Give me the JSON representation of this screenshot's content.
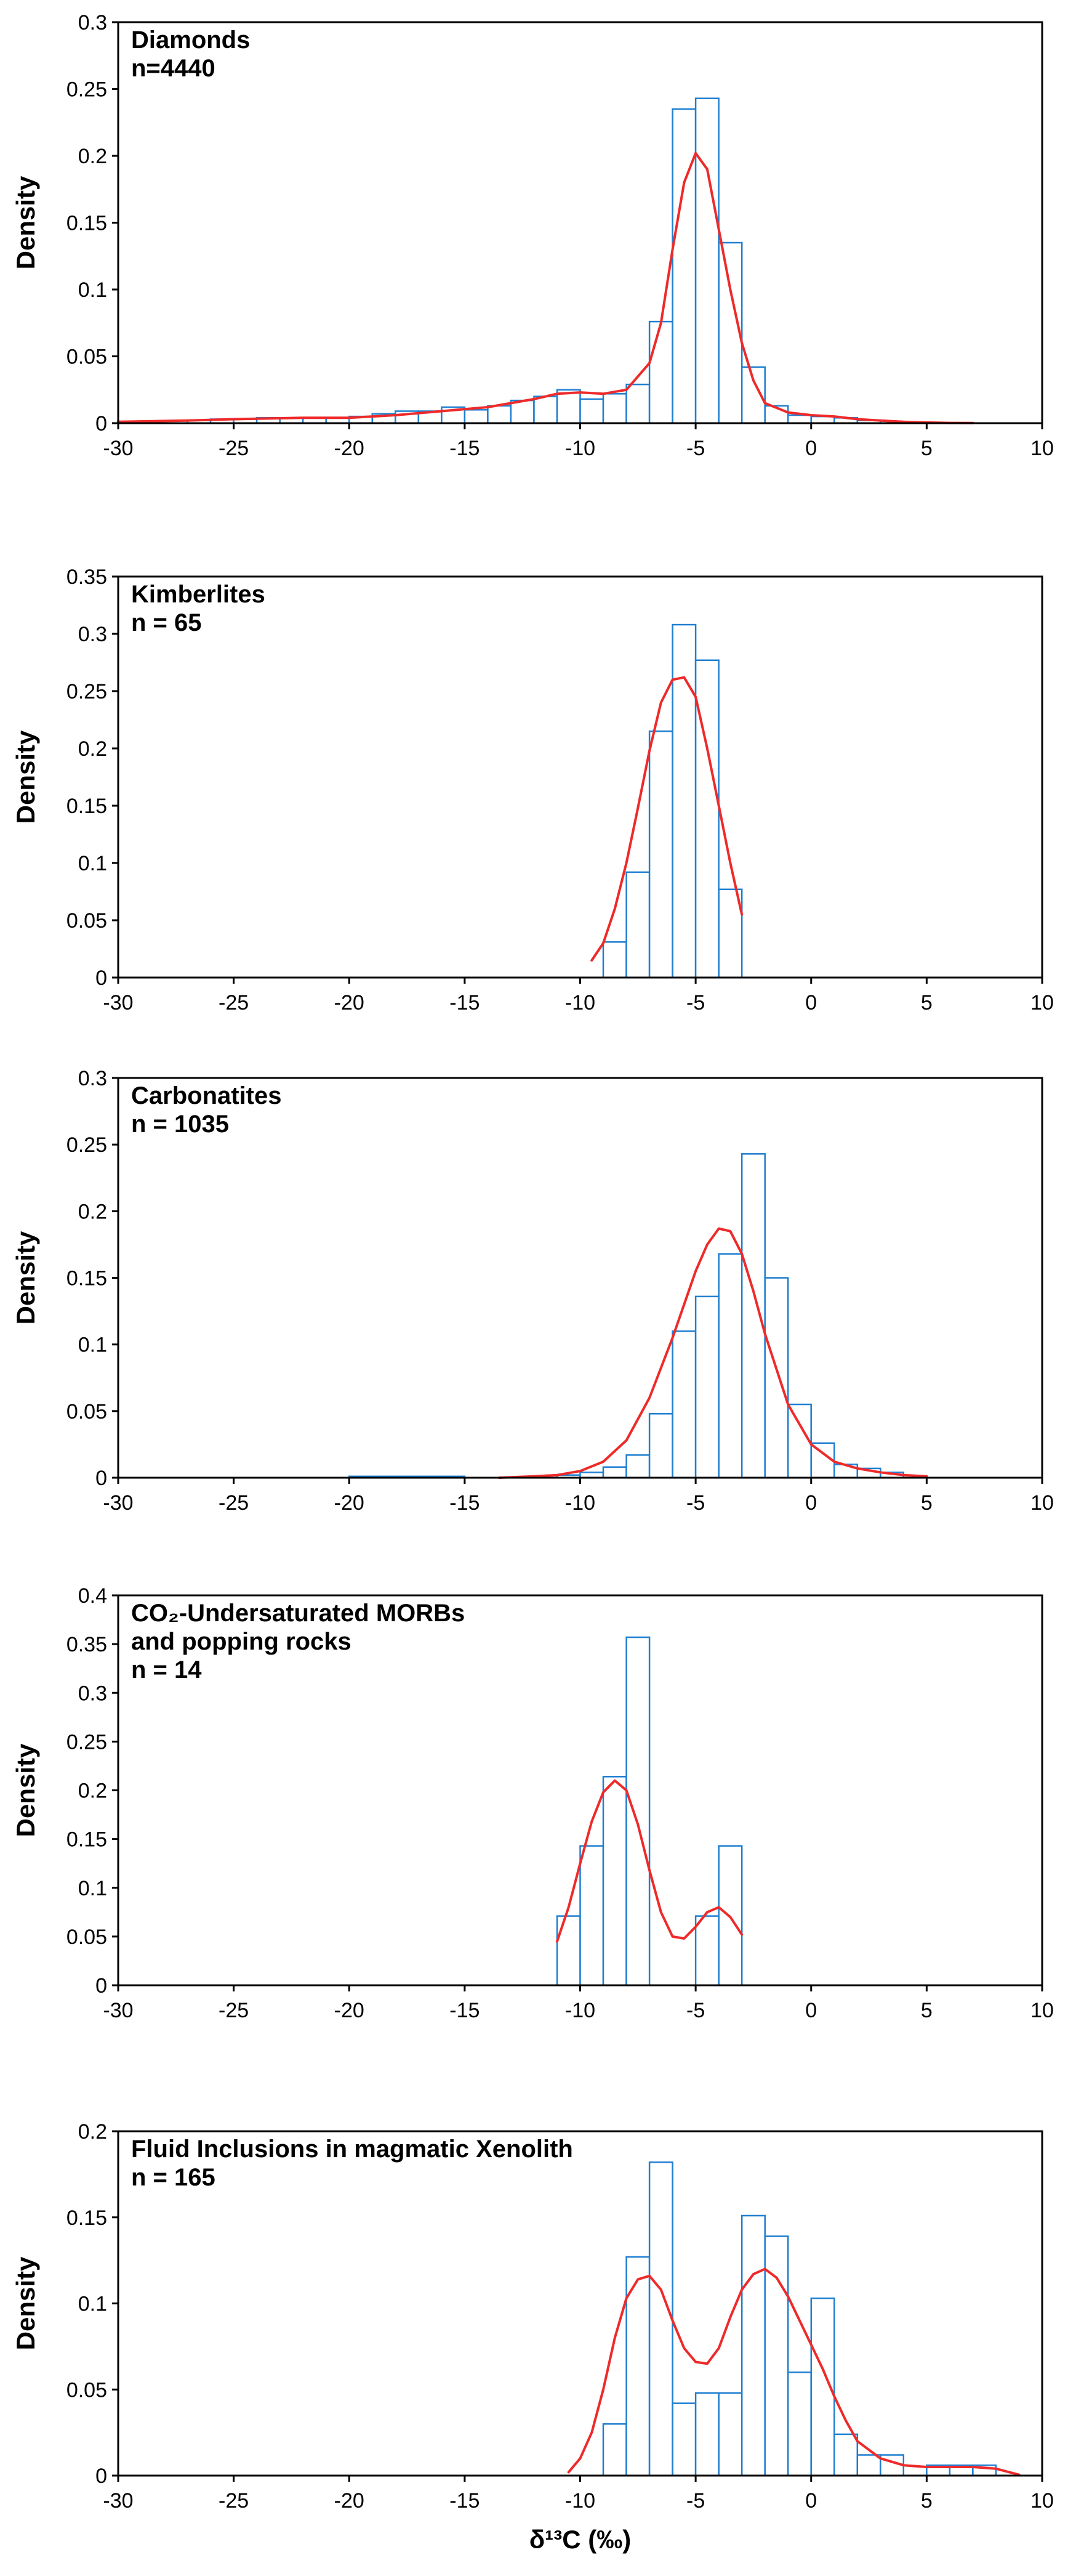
{
  "chart_data": [
    {
      "type": "bar",
      "title": "Diamonds",
      "count_label": "n=4440",
      "ylabel": "Density",
      "xlabel": "",
      "xlim": [
        -30,
        10
      ],
      "ylim": [
        0,
        0.3
      ],
      "yticks": [
        0,
        0.05,
        0.1,
        0.15,
        0.2,
        0.25,
        0.3
      ],
      "ytick_labels": [
        "0",
        "0.05",
        "0.1",
        "0.15",
        "0.2",
        "0.25",
        "0.3"
      ],
      "xticks": [
        -30,
        -25,
        -20,
        -15,
        -10,
        -5,
        0,
        5,
        10
      ],
      "xtick_labels": [
        "-30",
        "-25",
        "-20",
        "-15",
        "-10",
        "-5",
        "0",
        "5",
        "10"
      ],
      "bins": [
        [
          -27,
          -26,
          0.002
        ],
        [
          -26,
          -25,
          0.003
        ],
        [
          -25,
          -24,
          0.003
        ],
        [
          -24,
          -23,
          0.004
        ],
        [
          -23,
          -22,
          0.004
        ],
        [
          -22,
          -21,
          0.004
        ],
        [
          -21,
          -20,
          0.004
        ],
        [
          -20,
          -19,
          0.005
        ],
        [
          -19,
          -18,
          0.007
        ],
        [
          -18,
          -17,
          0.009
        ],
        [
          -17,
          -16,
          0.009
        ],
        [
          -16,
          -15,
          0.012
        ],
        [
          -15,
          -14,
          0.01
        ],
        [
          -14,
          -13,
          0.013
        ],
        [
          -13,
          -12,
          0.017
        ],
        [
          -12,
          -11,
          0.02
        ],
        [
          -11,
          -10,
          0.025
        ],
        [
          -10,
          -9,
          0.018
        ],
        [
          -9,
          -8,
          0.022
        ],
        [
          -8,
          -7,
          0.029
        ],
        [
          -7,
          -6,
          0.076
        ],
        [
          -6,
          -5,
          0.235
        ],
        [
          -5,
          -4,
          0.243
        ],
        [
          -4,
          -3,
          0.135
        ],
        [
          -3,
          -2,
          0.042
        ],
        [
          -2,
          -1,
          0.013
        ],
        [
          -1,
          0,
          0.006
        ],
        [
          0,
          1,
          0.005
        ],
        [
          1,
          2,
          0.004
        ],
        [
          2,
          3,
          0.002
        ]
      ],
      "curve": {
        "x": [
          -30,
          -27,
          -25,
          -22,
          -20,
          -18,
          -16,
          -14,
          -12,
          -11,
          -10,
          -9,
          -8,
          -7,
          -6.5,
          -6,
          -5.5,
          -5,
          -4.5,
          -4,
          -3.5,
          -3,
          -2.5,
          -2,
          -1,
          0,
          1,
          2,
          3,
          4,
          5,
          6,
          7
        ],
        "y": [
          0.001,
          0.002,
          0.003,
          0.004,
          0.004,
          0.006,
          0.009,
          0.012,
          0.018,
          0.022,
          0.023,
          0.022,
          0.025,
          0.045,
          0.075,
          0.13,
          0.18,
          0.202,
          0.19,
          0.145,
          0.1,
          0.06,
          0.032,
          0.015,
          0.008,
          0.006,
          0.005,
          0.003,
          0.002,
          0.001,
          0.0005,
          0.0002,
          0.0001
        ]
      }
    },
    {
      "type": "bar",
      "title": "Kimberlites",
      "count_label": "n = 65",
      "ylabel": "Density",
      "xlabel": "",
      "xlim": [
        -30,
        10
      ],
      "ylim": [
        0,
        0.35
      ],
      "yticks": [
        0,
        0.05,
        0.1,
        0.15,
        0.2,
        0.25,
        0.3,
        0.35
      ],
      "ytick_labels": [
        "0",
        "0.05",
        "0.1",
        "0.15",
        "0.2",
        "0.25",
        "0.3",
        "0.35"
      ],
      "xticks": [
        -30,
        -25,
        -20,
        -15,
        -10,
        -5,
        0,
        5,
        10
      ],
      "xtick_labels": [
        "-30",
        "-25",
        "-20",
        "-15",
        "-10",
        "-5",
        "0",
        "5",
        "10"
      ],
      "bins": [
        [
          -9,
          -8,
          0.031
        ],
        [
          -8,
          -7,
          0.092
        ],
        [
          -7,
          -6,
          0.215
        ],
        [
          -6,
          -5,
          0.308
        ],
        [
          -5,
          -4,
          0.277
        ],
        [
          -4,
          -3,
          0.077
        ]
      ],
      "curve": {
        "x": [
          -9.5,
          -9,
          -8.5,
          -8,
          -7.5,
          -7,
          -6.5,
          -6,
          -5.5,
          -5,
          -4.5,
          -4,
          -3.5,
          -3
        ],
        "y": [
          0.015,
          0.03,
          0.06,
          0.1,
          0.148,
          0.198,
          0.24,
          0.26,
          0.262,
          0.245,
          0.2,
          0.15,
          0.1,
          0.055
        ]
      }
    },
    {
      "type": "bar",
      "title": "Carbonatites",
      "count_label": "n = 1035",
      "ylabel": "Density",
      "xlabel": "",
      "xlim": [
        -30,
        10
      ],
      "ylim": [
        0,
        0.3
      ],
      "yticks": [
        0,
        0.05,
        0.1,
        0.15,
        0.2,
        0.25,
        0.3
      ],
      "ytick_labels": [
        "0",
        "0.05",
        "0.1",
        "0.15",
        "0.2",
        "0.25",
        "0.3"
      ],
      "xticks": [
        -30,
        -25,
        -20,
        -15,
        -10,
        -5,
        0,
        5,
        10
      ],
      "xtick_labels": [
        "-30",
        "-25",
        "-20",
        "-15",
        "-10",
        "-5",
        "0",
        "5",
        "10"
      ],
      "bins": [
        [
          -20,
          -19,
          0.001
        ],
        [
          -19,
          -18,
          0.001
        ],
        [
          -18,
          -17,
          0.001
        ],
        [
          -17,
          -16,
          0.001
        ],
        [
          -16,
          -15,
          0.001
        ],
        [
          -11,
          -10,
          0.002
        ],
        [
          -10,
          -9,
          0.004
        ],
        [
          -9,
          -8,
          0.008
        ],
        [
          -8,
          -7,
          0.017
        ],
        [
          -7,
          -6,
          0.048
        ],
        [
          -6,
          -5,
          0.11
        ],
        [
          -5,
          -4,
          0.136
        ],
        [
          -4,
          -3,
          0.168
        ],
        [
          -3,
          -2,
          0.243
        ],
        [
          -2,
          -1,
          0.15
        ],
        [
          -1,
          0,
          0.055
        ],
        [
          0,
          1,
          0.026
        ],
        [
          1,
          2,
          0.01
        ],
        [
          2,
          3,
          0.007
        ],
        [
          3,
          4,
          0.004
        ]
      ],
      "curve": {
        "x": [
          -13.5,
          -12,
          -11,
          -10,
          -9,
          -8,
          -7,
          -6,
          -5,
          -4.5,
          -4,
          -3.5,
          -3,
          -2.5,
          -2,
          -1,
          0,
          1,
          2,
          3,
          4,
          5
        ],
        "y": [
          0,
          0.001,
          0.002,
          0.005,
          0.012,
          0.028,
          0.06,
          0.105,
          0.155,
          0.175,
          0.187,
          0.185,
          0.168,
          0.14,
          0.108,
          0.055,
          0.025,
          0.012,
          0.007,
          0.004,
          0.002,
          0.001
        ]
      }
    },
    {
      "type": "bar",
      "title": "CO₂-Undersaturated MORBs",
      "title_line2": "and popping rocks",
      "count_label": "n = 14",
      "ylabel": "Density",
      "xlabel": "",
      "xlim": [
        -30,
        10
      ],
      "ylim": [
        0,
        0.4
      ],
      "yticks": [
        0,
        0.05,
        0.1,
        0.15,
        0.2,
        0.25,
        0.3,
        0.35,
        0.4
      ],
      "ytick_labels": [
        "0",
        "0.05",
        "0.1",
        "0.15",
        "0.2",
        "0.25",
        "0.3",
        "0.35",
        "0.4"
      ],
      "xticks": [
        -30,
        -25,
        -20,
        -15,
        -10,
        -5,
        0,
        5,
        10
      ],
      "xtick_labels": [
        "-30",
        "-25",
        "-20",
        "-15",
        "-10",
        "-5",
        "0",
        "5",
        "10"
      ],
      "bins": [
        [
          -11,
          -10,
          0.071
        ],
        [
          -10,
          -9,
          0.143
        ],
        [
          -9,
          -8,
          0.214
        ],
        [
          -8,
          -7,
          0.357
        ],
        [
          -5,
          -4,
          0.071
        ],
        [
          -4,
          -3,
          0.143
        ]
      ],
      "curve": {
        "x": [
          -11,
          -10.5,
          -10,
          -9.5,
          -9,
          -8.5,
          -8,
          -7.5,
          -7,
          -6.5,
          -6,
          -5.5,
          -5,
          -4.5,
          -4,
          -3.5,
          -3
        ],
        "y": [
          0.045,
          0.08,
          0.125,
          0.168,
          0.198,
          0.21,
          0.2,
          0.165,
          0.118,
          0.075,
          0.05,
          0.048,
          0.06,
          0.075,
          0.08,
          0.07,
          0.052
        ]
      }
    },
    {
      "type": "bar",
      "title": "Fluid Inclusions in magmatic Xenolith",
      "count_label": "n = 165",
      "ylabel": "Density",
      "xlabel": "δ¹³C (‰)",
      "xlim": [
        -30,
        10
      ],
      "ylim": [
        0,
        0.2
      ],
      "yticks": [
        0,
        0.05,
        0.1,
        0.15,
        0.2
      ],
      "ytick_labels": [
        "0",
        "0.05",
        "0.1",
        "0.15",
        "0.2"
      ],
      "xticks": [
        -30,
        -25,
        -20,
        -15,
        -10,
        -5,
        0,
        5,
        10
      ],
      "xtick_labels": [
        "-30",
        "-25",
        "-20",
        "-15",
        "-10",
        "-5",
        "0",
        "5",
        "10"
      ],
      "bins": [
        [
          -9,
          -8,
          0.03
        ],
        [
          -8,
          -7,
          0.127
        ],
        [
          -7,
          -6,
          0.182
        ],
        [
          -6,
          -5,
          0.042
        ],
        [
          -5,
          -4,
          0.048
        ],
        [
          -4,
          -3,
          0.048
        ],
        [
          -3,
          -2,
          0.151
        ],
        [
          -2,
          -1,
          0.139
        ],
        [
          -1,
          0,
          0.06
        ],
        [
          0,
          1,
          0.103
        ],
        [
          1,
          2,
          0.024
        ],
        [
          2,
          3,
          0.012
        ],
        [
          3,
          4,
          0.012
        ],
        [
          5,
          6,
          0.006
        ],
        [
          6,
          7,
          0.006
        ],
        [
          7,
          8,
          0.006
        ]
      ],
      "curve": {
        "x": [
          -10.5,
          -10,
          -9.5,
          -9,
          -8.5,
          -8,
          -7.5,
          -7,
          -6.5,
          -6,
          -5.5,
          -5,
          -4.5,
          -4,
          -3.5,
          -3,
          -2.5,
          -2,
          -1.5,
          -1,
          -0.5,
          0,
          0.5,
          1,
          1.5,
          2,
          3,
          4,
          5,
          6,
          7,
          8,
          9
        ],
        "y": [
          0.002,
          0.01,
          0.025,
          0.05,
          0.08,
          0.103,
          0.114,
          0.116,
          0.108,
          0.09,
          0.074,
          0.066,
          0.065,
          0.074,
          0.092,
          0.108,
          0.117,
          0.12,
          0.115,
          0.104,
          0.09,
          0.076,
          0.062,
          0.046,
          0.032,
          0.02,
          0.01,
          0.006,
          0.005,
          0.005,
          0.005,
          0.004,
          0.0005
        ]
      }
    }
  ],
  "colors": {
    "bar_stroke": "#1f7fd1",
    "bar_fill": "#ffffff",
    "curve": "#ee2a2a",
    "axis": "#000000"
  }
}
